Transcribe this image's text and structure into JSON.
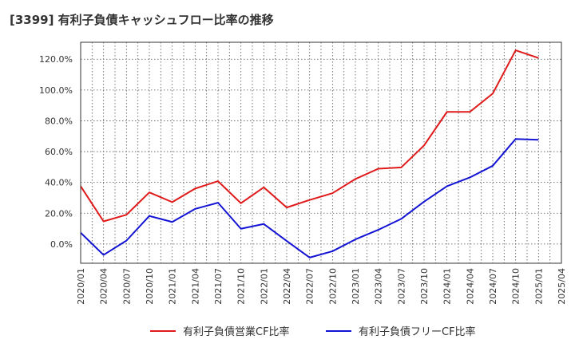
{
  "chart_data": {
    "type": "line",
    "title": "[3399]  有利子負債キャッシュフロー比率の推移",
    "xlabel": "",
    "ylabel": "",
    "x_ticks": [
      "2020/01",
      "2020/04",
      "2020/07",
      "2020/10",
      "2021/01",
      "2021/04",
      "2021/07",
      "2021/10",
      "2022/01",
      "2022/04",
      "2022/07",
      "2022/10",
      "2023/01",
      "2023/04",
      "2023/07",
      "2023/10",
      "2024/01",
      "2024/04",
      "2024/07",
      "2024/10",
      "2025/01",
      "2025/04"
    ],
    "y_ticks": [
      "0.0%",
      "20.0%",
      "40.0%",
      "60.0%",
      "80.0%",
      "100.0%",
      "120.0%"
    ],
    "ylim": [
      -12.5,
      131
    ],
    "grid": true,
    "legend_position": "bottom",
    "x": [
      "2020/01",
      "2020/04",
      "2020/07",
      "2020/10",
      "2021/01",
      "2021/04",
      "2021/07",
      "2021/10",
      "2022/01",
      "2022/04",
      "2022/07",
      "2022/10",
      "2023/01",
      "2023/04",
      "2023/07",
      "2023/10",
      "2024/01",
      "2024/04",
      "2024/07",
      "2024/10",
      "2025/01"
    ],
    "series": [
      {
        "name": "有利子負債営業CF比率",
        "color": "#e01a1a",
        "values": [
          37.5,
          14.7,
          19.0,
          33.5,
          27.2,
          36.0,
          40.8,
          26.5,
          36.8,
          23.7,
          28.6,
          33.0,
          42.2,
          48.9,
          49.7,
          64.0,
          85.8,
          85.8,
          97.7,
          125.8,
          120.8
        ]
      },
      {
        "name": "有利子負債フリーCF比率",
        "color": "#1414d4",
        "values": [
          7.3,
          -7.1,
          2.2,
          18.2,
          14.3,
          22.8,
          26.8,
          9.9,
          13.0,
          2.0,
          -8.8,
          -4.7,
          3.0,
          9.2,
          16.3,
          27.5,
          37.5,
          43.2,
          50.8,
          68.2,
          67.7
        ]
      }
    ]
  }
}
